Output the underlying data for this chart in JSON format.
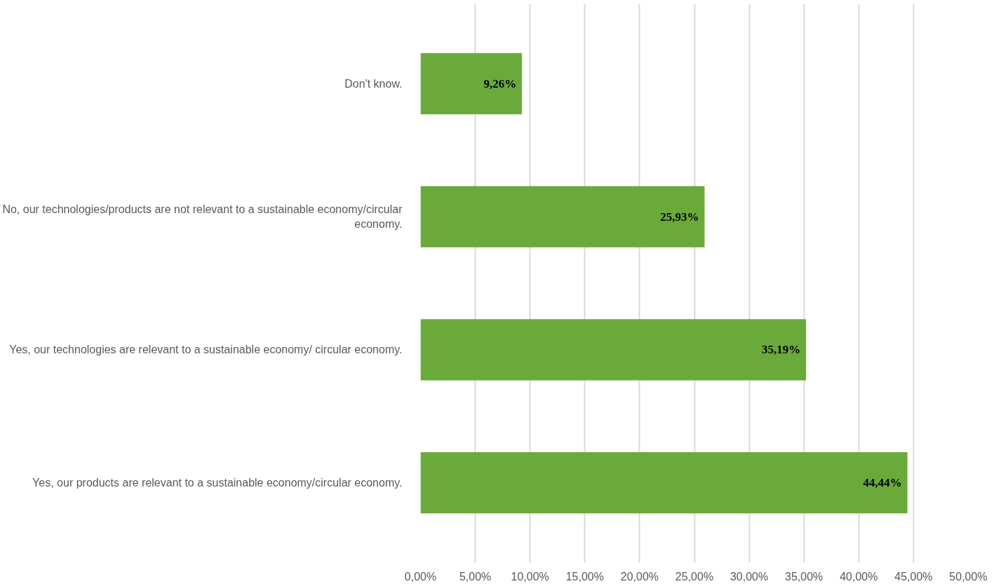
{
  "chart_data": {
    "type": "bar",
    "orientation": "horizontal",
    "categories": [
      "Don't know.",
      "No, our technologies/products are not relevant to a sustainable economy/circular economy.",
      "Yes, our technologies are relevant to a sustainable economy/ circular economy.",
      "Yes, our products are relevant to a sustainable economy/circular economy."
    ],
    "values": [
      9.26,
      25.93,
      35.19,
      44.44
    ],
    "value_labels": [
      "9,26%",
      "25,93%",
      "35,19%",
      "44,44%"
    ],
    "color": "#6aaa3a",
    "xlim": [
      0,
      50
    ],
    "xticks": [
      {
        "value": 0,
        "label": "0,00%"
      },
      {
        "value": 5,
        "label": "5,00%"
      },
      {
        "value": 10,
        "label": "10,00%"
      },
      {
        "value": 15,
        "label": "15,00%"
      },
      {
        "value": 20,
        "label": "20,00%"
      },
      {
        "value": 25,
        "label": "25,00%"
      },
      {
        "value": 30,
        "label": "30,00%"
      },
      {
        "value": 35,
        "label": "35,00%"
      },
      {
        "value": 40,
        "label": "40,00%"
      },
      {
        "value": 45,
        "label": "45,00%"
      },
      {
        "value": 50,
        "label": "50,00%"
      }
    ],
    "grid": "x"
  }
}
